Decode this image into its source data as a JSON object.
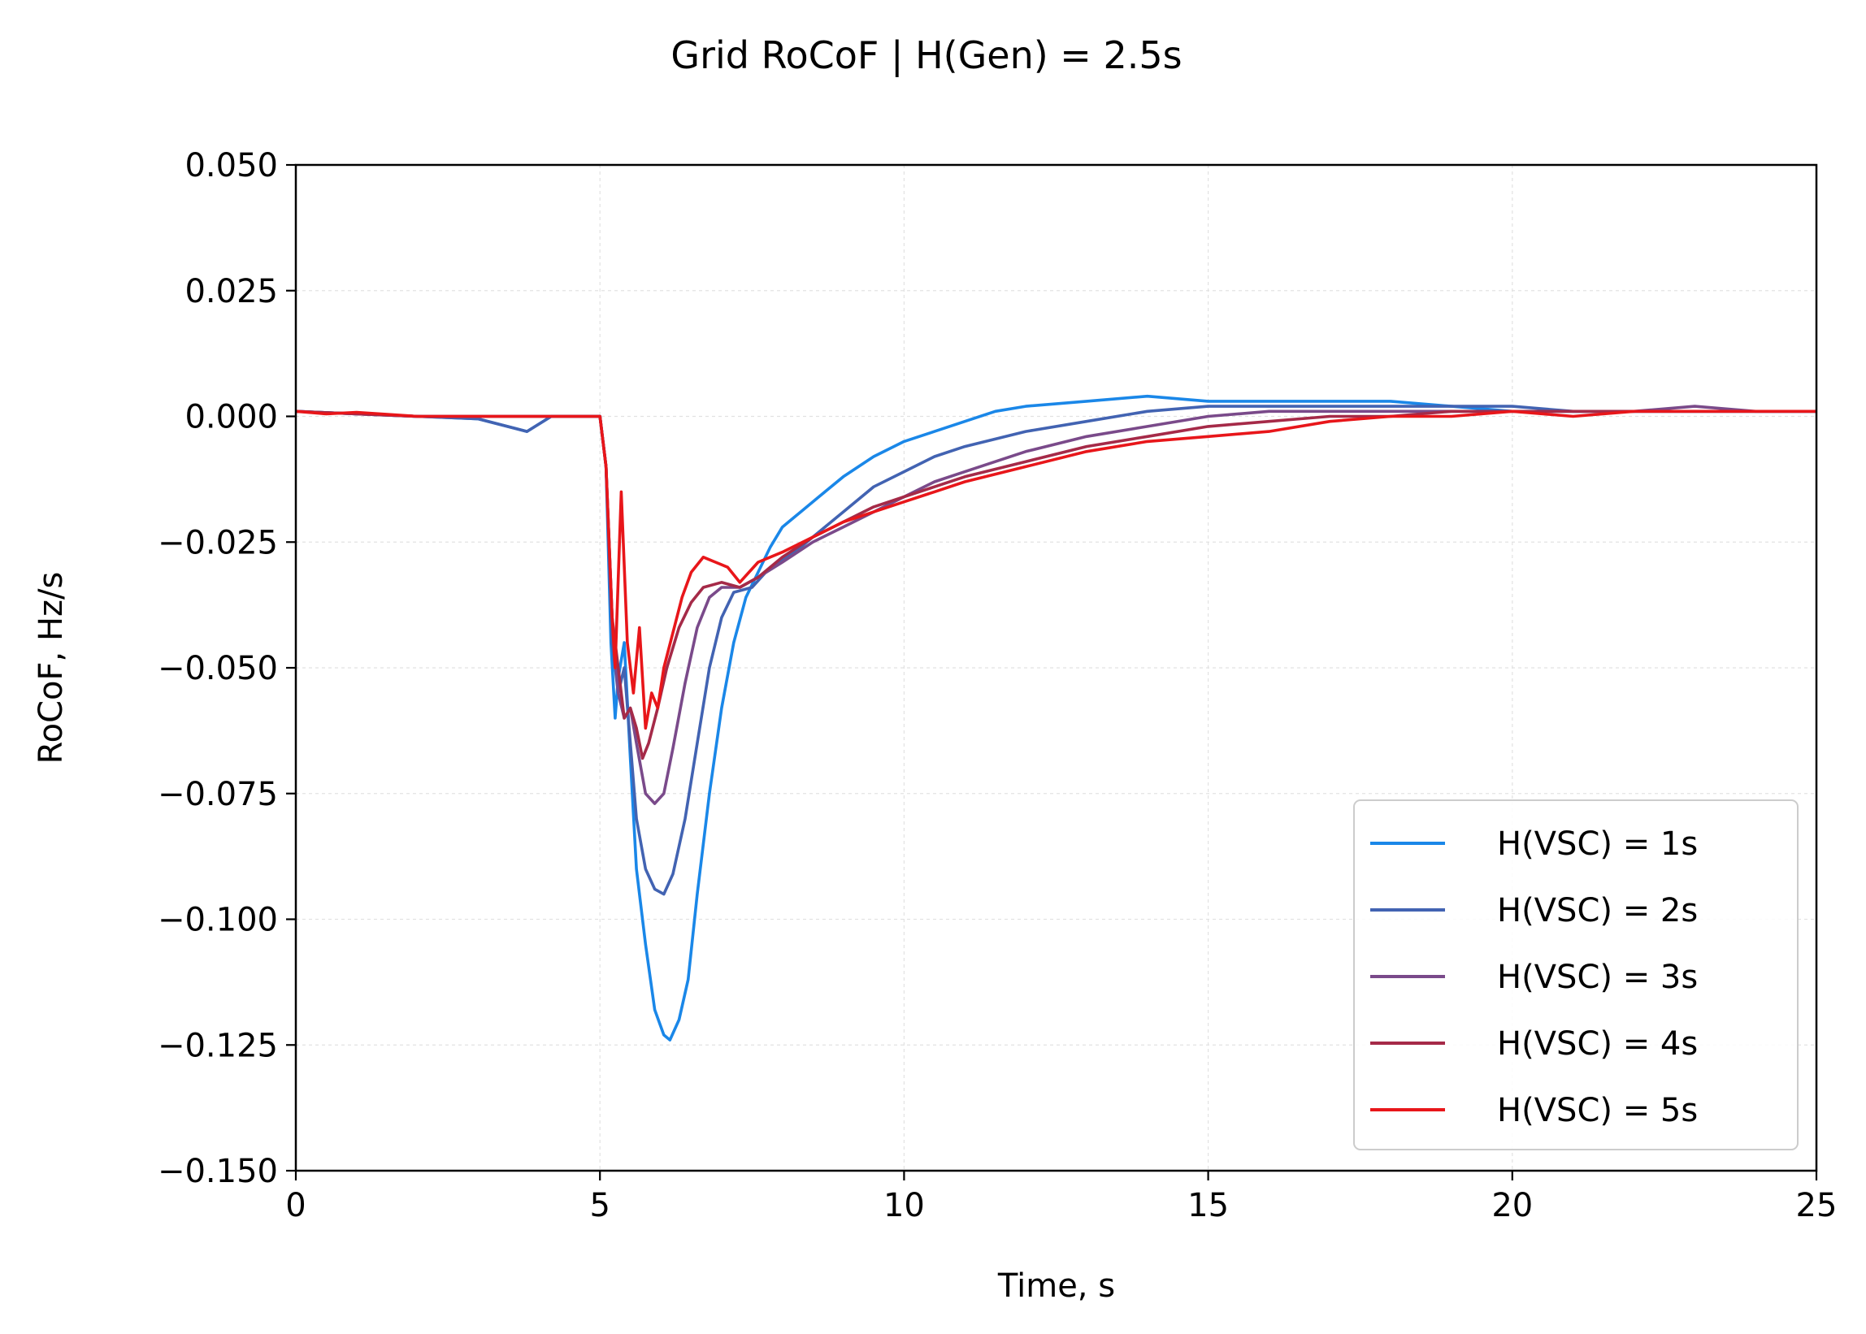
{
  "chart_data": {
    "type": "line",
    "title": "Grid RoCoF  |  H(Gen) = 2.5s",
    "xlabel": "Time, s",
    "ylabel": "RoCoF, Hz/s",
    "xlim": [
      0,
      25
    ],
    "ylim": [
      -0.15,
      0.05
    ],
    "xticks": [
      0,
      5,
      10,
      15,
      20,
      25
    ],
    "xtick_labels": [
      "0",
      "5",
      "10",
      "15",
      "20",
      "25"
    ],
    "yticks": [
      0.05,
      0.025,
      0.0,
      -0.025,
      -0.05,
      -0.075,
      -0.1,
      -0.125,
      -0.15
    ],
    "ytick_labels": [
      "0.050",
      "0.025",
      "0.000",
      "−0.025",
      "−0.050",
      "−0.075",
      "−0.100",
      "−0.125",
      "−0.150"
    ],
    "grid": true,
    "legend_position": "lower-right",
    "series": [
      {
        "name": "H(VSC) = 1s",
        "color": "#1a87e8",
        "points": [
          [
            0,
            0.001
          ],
          [
            1,
            0.0005
          ],
          [
            2,
            0.0
          ],
          [
            3,
            -0.0005
          ],
          [
            3.8,
            -0.003
          ],
          [
            4.2,
            0.0
          ],
          [
            4.6,
            0.0
          ],
          [
            5.0,
            0.0
          ],
          [
            5.1,
            -0.01
          ],
          [
            5.18,
            -0.045
          ],
          [
            5.25,
            -0.06
          ],
          [
            5.3,
            -0.052
          ],
          [
            5.4,
            -0.045
          ],
          [
            5.5,
            -0.068
          ],
          [
            5.6,
            -0.09
          ],
          [
            5.75,
            -0.105
          ],
          [
            5.9,
            -0.118
          ],
          [
            6.05,
            -0.123
          ],
          [
            6.15,
            -0.124
          ],
          [
            6.3,
            -0.12
          ],
          [
            6.45,
            -0.112
          ],
          [
            6.6,
            -0.095
          ],
          [
            6.8,
            -0.075
          ],
          [
            7.0,
            -0.058
          ],
          [
            7.2,
            -0.045
          ],
          [
            7.4,
            -0.036
          ],
          [
            7.6,
            -0.031
          ],
          [
            7.8,
            -0.026
          ],
          [
            8.0,
            -0.022
          ],
          [
            8.3,
            -0.019
          ],
          [
            8.6,
            -0.016
          ],
          [
            9.0,
            -0.012
          ],
          [
            9.5,
            -0.008
          ],
          [
            10.0,
            -0.005
          ],
          [
            10.5,
            -0.003
          ],
          [
            11.0,
            -0.001
          ],
          [
            11.5,
            0.001
          ],
          [
            12.0,
            0.002
          ],
          [
            13.0,
            0.003
          ],
          [
            14.0,
            0.004
          ],
          [
            15.0,
            0.003
          ],
          [
            16.0,
            0.003
          ],
          [
            17.0,
            0.003
          ],
          [
            18.0,
            0.003
          ],
          [
            19.0,
            0.002
          ],
          [
            20.0,
            0.001
          ],
          [
            21.0,
            0.001
          ],
          [
            22.0,
            0.001
          ],
          [
            23.0,
            0.001
          ],
          [
            24.0,
            0.001
          ],
          [
            25.0,
            0.001
          ]
        ]
      },
      {
        "name": "H(VSC) = 2s",
        "color": "#4263b2",
        "points": [
          [
            0,
            0.001
          ],
          [
            1,
            0.0005
          ],
          [
            2,
            0.0
          ],
          [
            3,
            -0.0005
          ],
          [
            3.8,
            -0.003
          ],
          [
            4.2,
            0.0
          ],
          [
            4.6,
            0.0
          ],
          [
            5.0,
            0.0
          ],
          [
            5.1,
            -0.01
          ],
          [
            5.2,
            -0.045
          ],
          [
            5.3,
            -0.055
          ],
          [
            5.4,
            -0.05
          ],
          [
            5.5,
            -0.065
          ],
          [
            5.6,
            -0.08
          ],
          [
            5.75,
            -0.09
          ],
          [
            5.9,
            -0.094
          ],
          [
            6.05,
            -0.095
          ],
          [
            6.2,
            -0.091
          ],
          [
            6.4,
            -0.08
          ],
          [
            6.6,
            -0.065
          ],
          [
            6.8,
            -0.05
          ],
          [
            7.0,
            -0.04
          ],
          [
            7.2,
            -0.035
          ],
          [
            7.5,
            -0.034
          ],
          [
            7.8,
            -0.03
          ],
          [
            8.2,
            -0.027
          ],
          [
            8.6,
            -0.023
          ],
          [
            9.0,
            -0.019
          ],
          [
            9.5,
            -0.014
          ],
          [
            10.0,
            -0.011
          ],
          [
            10.5,
            -0.008
          ],
          [
            11.0,
            -0.006
          ],
          [
            12.0,
            -0.003
          ],
          [
            13.0,
            -0.001
          ],
          [
            14.0,
            0.001
          ],
          [
            15.0,
            0.002
          ],
          [
            16.0,
            0.002
          ],
          [
            17.0,
            0.002
          ],
          [
            18.0,
            0.002
          ],
          [
            19.0,
            0.002
          ],
          [
            20.0,
            0.002
          ],
          [
            21.0,
            0.001
          ],
          [
            22.0,
            0.001
          ],
          [
            23.0,
            0.001
          ],
          [
            24.0,
            0.001
          ],
          [
            25.0,
            0.001
          ]
        ]
      },
      {
        "name": "H(VSC) = 3s",
        "color": "#7a4a8a",
        "points": [
          [
            0,
            0.001
          ],
          [
            1,
            0.0005
          ],
          [
            2,
            0.0
          ],
          [
            3,
            0.0
          ],
          [
            4,
            0.0
          ],
          [
            4.6,
            0.0
          ],
          [
            5.0,
            0.0
          ],
          [
            5.1,
            -0.01
          ],
          [
            5.2,
            -0.04
          ],
          [
            5.3,
            -0.055
          ],
          [
            5.4,
            -0.06
          ],
          [
            5.5,
            -0.058
          ],
          [
            5.6,
            -0.065
          ],
          [
            5.75,
            -0.075
          ],
          [
            5.9,
            -0.077
          ],
          [
            6.05,
            -0.075
          ],
          [
            6.2,
            -0.066
          ],
          [
            6.4,
            -0.053
          ],
          [
            6.6,
            -0.042
          ],
          [
            6.8,
            -0.036
          ],
          [
            7.0,
            -0.034
          ],
          [
            7.3,
            -0.034
          ],
          [
            7.6,
            -0.032
          ],
          [
            8.0,
            -0.029
          ],
          [
            8.5,
            -0.025
          ],
          [
            9.0,
            -0.022
          ],
          [
            9.5,
            -0.019
          ],
          [
            10.0,
            -0.016
          ],
          [
            10.5,
            -0.013
          ],
          [
            11.0,
            -0.011
          ],
          [
            12.0,
            -0.007
          ],
          [
            13.0,
            -0.004
          ],
          [
            14.0,
            -0.002
          ],
          [
            15.0,
            0.0
          ],
          [
            16.0,
            0.001
          ],
          [
            17.0,
            0.001
          ],
          [
            18.0,
            0.001
          ],
          [
            19.0,
            0.001
          ],
          [
            20.0,
            0.001
          ],
          [
            21.0,
            0.001
          ],
          [
            22.0,
            0.001
          ],
          [
            23.0,
            0.002
          ],
          [
            24.0,
            0.001
          ],
          [
            25.0,
            0.001
          ]
        ]
      },
      {
        "name": "H(VSC) = 4s",
        "color": "#a52a48",
        "points": [
          [
            0,
            0.001
          ],
          [
            1,
            0.0005
          ],
          [
            2,
            0.0
          ],
          [
            3,
            0.0
          ],
          [
            4,
            0.0
          ],
          [
            4.6,
            0.0
          ],
          [
            5.0,
            0.0
          ],
          [
            5.1,
            -0.01
          ],
          [
            5.2,
            -0.04
          ],
          [
            5.3,
            -0.05
          ],
          [
            5.4,
            -0.06
          ],
          [
            5.5,
            -0.058
          ],
          [
            5.6,
            -0.062
          ],
          [
            5.7,
            -0.068
          ],
          [
            5.8,
            -0.065
          ],
          [
            5.95,
            -0.058
          ],
          [
            6.1,
            -0.05
          ],
          [
            6.3,
            -0.042
          ],
          [
            6.5,
            -0.037
          ],
          [
            6.7,
            -0.034
          ],
          [
            7.0,
            -0.033
          ],
          [
            7.3,
            -0.034
          ],
          [
            7.6,
            -0.032
          ],
          [
            8.0,
            -0.028
          ],
          [
            8.5,
            -0.024
          ],
          [
            9.0,
            -0.021
          ],
          [
            9.5,
            -0.018
          ],
          [
            10.0,
            -0.016
          ],
          [
            10.5,
            -0.014
          ],
          [
            11.0,
            -0.012
          ],
          [
            12.0,
            -0.009
          ],
          [
            13.0,
            -0.006
          ],
          [
            14.0,
            -0.004
          ],
          [
            15.0,
            -0.002
          ],
          [
            16.0,
            -0.001
          ],
          [
            17.0,
            0.0
          ],
          [
            18.0,
            0.0
          ],
          [
            19.0,
            0.001
          ],
          [
            20.0,
            0.001
          ],
          [
            21.0,
            0.001
          ],
          [
            22.0,
            0.001
          ],
          [
            23.0,
            0.001
          ],
          [
            24.0,
            0.001
          ],
          [
            25.0,
            0.001
          ]
        ]
      },
      {
        "name": "H(VSC) = 5s",
        "color": "#e8161a",
        "points": [
          [
            0,
            0.001
          ],
          [
            0.5,
            0.0005
          ],
          [
            1,
            0.0008
          ],
          [
            2,
            0.0
          ],
          [
            3,
            0.0
          ],
          [
            4,
            0.0
          ],
          [
            4.6,
            0.0
          ],
          [
            5.0,
            0.0
          ],
          [
            5.1,
            -0.01
          ],
          [
            5.2,
            -0.04
          ],
          [
            5.25,
            -0.05
          ],
          [
            5.35,
            -0.015
          ],
          [
            5.45,
            -0.045
          ],
          [
            5.55,
            -0.055
          ],
          [
            5.65,
            -0.042
          ],
          [
            5.75,
            -0.062
          ],
          [
            5.85,
            -0.055
          ],
          [
            5.95,
            -0.058
          ],
          [
            6.05,
            -0.05
          ],
          [
            6.2,
            -0.043
          ],
          [
            6.35,
            -0.036
          ],
          [
            6.5,
            -0.031
          ],
          [
            6.7,
            -0.028
          ],
          [
            6.9,
            -0.029
          ],
          [
            7.1,
            -0.03
          ],
          [
            7.3,
            -0.033
          ],
          [
            7.6,
            -0.029
          ],
          [
            8.0,
            -0.027
          ],
          [
            8.5,
            -0.024
          ],
          [
            9.0,
            -0.021
          ],
          [
            9.5,
            -0.019
          ],
          [
            10.0,
            -0.017
          ],
          [
            10.5,
            -0.015
          ],
          [
            11.0,
            -0.013
          ],
          [
            12.0,
            -0.01
          ],
          [
            13.0,
            -0.007
          ],
          [
            14.0,
            -0.005
          ],
          [
            15.0,
            -0.004
          ],
          [
            16.0,
            -0.003
          ],
          [
            17.0,
            -0.001
          ],
          [
            18.0,
            0.0
          ],
          [
            19.0,
            0.0
          ],
          [
            20.0,
            0.001
          ],
          [
            21.0,
            0.0
          ],
          [
            22.0,
            0.001
          ],
          [
            23.0,
            0.001
          ],
          [
            24.0,
            0.001
          ],
          [
            25.0,
            0.001
          ]
        ]
      }
    ]
  }
}
